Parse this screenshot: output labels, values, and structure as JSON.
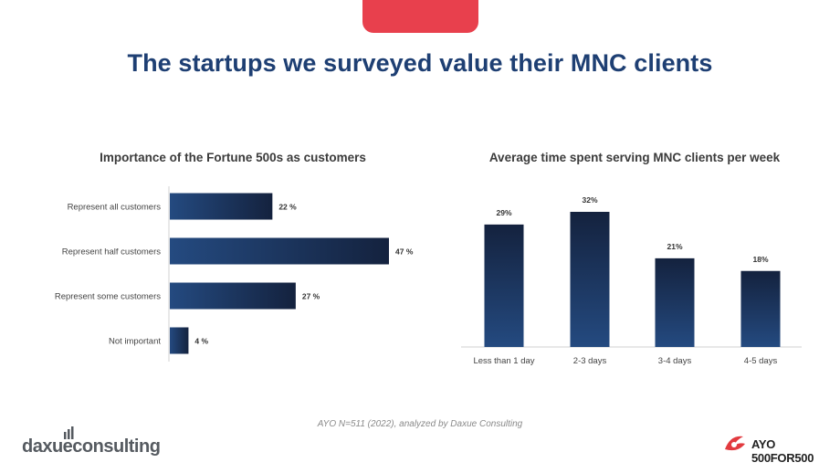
{
  "page": {
    "title": "The startups we surveyed value their MNC clients",
    "source": "AYO N=511 (2022), analyzed by Daxue Consulting",
    "logo_left_text": "daxueconsulting",
    "logo_right_text": "AYO 500FOR500"
  },
  "colors": {
    "title": "#1e3f73",
    "accent_tab": "#e8404d",
    "bar_dark": "#14223e",
    "bar_light": "#244a80"
  },
  "chart_data": [
    {
      "type": "bar",
      "orientation": "horizontal",
      "title": "Importance of the Fortune 500s as customers",
      "categories": [
        "Represent all customers",
        "Represent half customers",
        "Represent some customers",
        "Not important"
      ],
      "values": [
        22,
        47,
        27,
        4
      ],
      "value_labels": [
        "22 %",
        "47 %",
        "27 %",
        "4 %"
      ],
      "unit": "%",
      "xlim": [
        0,
        50
      ],
      "grid": false,
      "legend": "none"
    },
    {
      "type": "bar",
      "orientation": "vertical",
      "title": "Average time spent serving MNC clients per week",
      "categories": [
        "Less than 1 day",
        "2-3 days",
        "3-4 days",
        "4-5 days"
      ],
      "values": [
        29,
        32,
        21,
        18
      ],
      "value_labels": [
        "29%",
        "32%",
        "21%",
        "18%"
      ],
      "unit": "%",
      "ylim": [
        0,
        35
      ],
      "grid": false,
      "legend": "none"
    }
  ]
}
